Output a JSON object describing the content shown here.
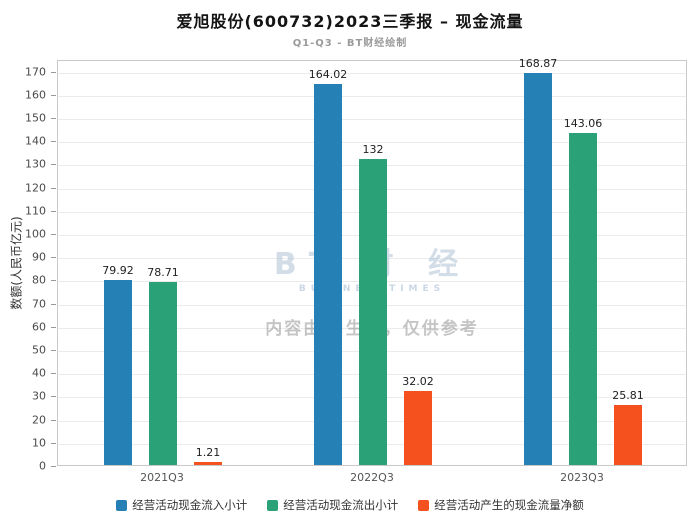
{
  "header": {
    "title": "爱旭股份(600732)2023三季报 – 现金流量",
    "subtitle": "Q1-Q3 - BT财经绘制"
  },
  "chart_data": {
    "type": "bar",
    "title": "爱旭股份(600732)2023三季报 – 现金流量",
    "subtitle": "Q1-Q3 - BT财经绘制",
    "categories": [
      "2021Q3",
      "2022Q3",
      "2023Q3"
    ],
    "series": [
      {
        "name": "经营活动现金流入小计",
        "color": "#2480b5",
        "values": [
          79.92,
          164.02,
          168.87
        ]
      },
      {
        "name": "经营活动现金流出小计",
        "color": "#2aa177",
        "values": [
          78.71,
          132,
          143.06
        ]
      },
      {
        "name": "经营活动产生的现金流量净额",
        "color": "#f4511e",
        "values": [
          1.21,
          32.02,
          25.81
        ]
      }
    ],
    "xlabel": "",
    "ylabel": "数额(人民币亿元)",
    "ylim": [
      0,
      175
    ],
    "yticks": [
      0,
      10,
      20,
      30,
      40,
      50,
      60,
      70,
      80,
      90,
      100,
      110,
      120,
      130,
      140,
      150,
      160,
      170
    ],
    "grid": true,
    "legend_position": "bottom"
  },
  "watermark": {
    "logo_text": "BT 财 经",
    "logo_sub": "BUSINESSTIMES",
    "disclaimer": "内容由AI生成，仅供参考"
  }
}
